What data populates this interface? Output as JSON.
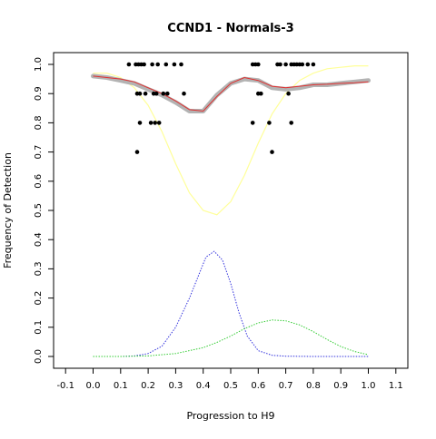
{
  "chart_data": {
    "type": "scatter",
    "title": "CCND1 - Normals-3",
    "xlabel": "Progression to H9",
    "ylabel": "Frequency of Detection",
    "xlim": [
      -0.1,
      1.1
    ],
    "ylim": [
      0.0,
      1.0
    ],
    "xticks": [
      "-0.1",
      "0.0",
      "0.1",
      "0.2",
      "0.3",
      "0.4",
      "0.5",
      "0.6",
      "0.7",
      "0.8",
      "0.9",
      "1.0",
      "1.1"
    ],
    "yticks": [
      "0.0",
      "0.1",
      "0.2",
      "0.3",
      "0.4",
      "0.5",
      "0.6",
      "0.7",
      "0.8",
      "0.9",
      "1.0"
    ],
    "grid": false,
    "colors": {
      "points": "#000000",
      "gray_band": "#b3b3b3",
      "smooth_line": "#e03030",
      "yellow_curve": "#ffff99",
      "blue_curve": "#3333dd",
      "green_curve": "#33cc33"
    },
    "series": [
      {
        "type": "scatter",
        "x": [
          0.13,
          0.155,
          0.165,
          0.175,
          0.185,
          0.215,
          0.235,
          0.265,
          0.295,
          0.32,
          0.58,
          0.59,
          0.6,
          0.67,
          0.68,
          0.7,
          0.72,
          0.73,
          0.74,
          0.75,
          0.76,
          0.78,
          0.8,
          0.16,
          0.17,
          0.19,
          0.22,
          0.23,
          0.255,
          0.27,
          0.33,
          0.6,
          0.61,
          0.71,
          0.17,
          0.21,
          0.225,
          0.24,
          0.58,
          0.64,
          0.72,
          0.65,
          0.16
        ],
        "y": [
          1.0,
          1.0,
          1.0,
          1.0,
          1.0,
          1.0,
          1.0,
          1.0,
          1.0,
          1.0,
          1.0,
          1.0,
          1.0,
          1.0,
          1.0,
          1.0,
          1.0,
          1.0,
          1.0,
          1.0,
          1.0,
          1.0,
          1.0,
          0.9,
          0.9,
          0.9,
          0.9,
          0.9,
          0.9,
          0.9,
          0.9,
          0.9,
          0.9,
          0.9,
          0.8,
          0.8,
          0.8,
          0.8,
          0.8,
          0.8,
          0.8,
          0.7,
          0.7
        ]
      },
      {
        "type": "band",
        "x": [
          0.0,
          0.05,
          0.1,
          0.15,
          0.2,
          0.25,
          0.3,
          0.35,
          0.4,
          0.45,
          0.5,
          0.55,
          0.6,
          0.65,
          0.7,
          0.75,
          0.8,
          0.85,
          0.9,
          0.95,
          1.0
        ],
        "y": [
          0.96,
          0.955,
          0.945,
          0.935,
          0.915,
          0.895,
          0.87,
          0.84,
          0.84,
          0.895,
          0.935,
          0.95,
          0.945,
          0.92,
          0.915,
          0.92,
          0.93,
          0.93,
          0.935,
          0.94,
          0.945
        ]
      },
      {
        "type": "line",
        "x": [
          0.0,
          0.05,
          0.1,
          0.15,
          0.2,
          0.25,
          0.3,
          0.35,
          0.4,
          0.45,
          0.5,
          0.55,
          0.6,
          0.65,
          0.7,
          0.75,
          0.8,
          0.85,
          0.9,
          0.95,
          1.0
        ],
        "y": [
          0.96,
          0.955,
          0.95,
          0.94,
          0.92,
          0.9,
          0.875,
          0.845,
          0.84,
          0.89,
          0.935,
          0.955,
          0.945,
          0.925,
          0.92,
          0.925,
          0.93,
          0.932,
          0.935,
          0.937,
          0.94
        ]
      },
      {
        "type": "line",
        "x": [
          0.0,
          0.05,
          0.1,
          0.15,
          0.2,
          0.25,
          0.3,
          0.35,
          0.4,
          0.45,
          0.5,
          0.55,
          0.6,
          0.65,
          0.7,
          0.75,
          0.8,
          0.85,
          0.9,
          0.95,
          1.0
        ],
        "y": [
          0.97,
          0.97,
          0.955,
          0.92,
          0.86,
          0.77,
          0.66,
          0.56,
          0.5,
          0.485,
          0.53,
          0.62,
          0.73,
          0.83,
          0.9,
          0.945,
          0.97,
          0.985,
          0.99,
          0.995,
          0.995
        ]
      },
      {
        "type": "line",
        "x": [
          0.0,
          0.1,
          0.15,
          0.2,
          0.25,
          0.3,
          0.35,
          0.38,
          0.41,
          0.44,
          0.47,
          0.5,
          0.53,
          0.56,
          0.6,
          0.65,
          0.7,
          0.8,
          1.0
        ],
        "y": [
          0.0,
          0.0,
          0.002,
          0.01,
          0.035,
          0.1,
          0.2,
          0.27,
          0.34,
          0.36,
          0.33,
          0.25,
          0.15,
          0.07,
          0.02,
          0.004,
          0.001,
          0.0,
          0.0
        ]
      },
      {
        "type": "line",
        "x": [
          0.0,
          0.1,
          0.2,
          0.3,
          0.4,
          0.45,
          0.5,
          0.55,
          0.6,
          0.65,
          0.7,
          0.75,
          0.8,
          0.85,
          0.9,
          0.95,
          1.0
        ],
        "y": [
          0.0,
          0.0,
          0.002,
          0.01,
          0.03,
          0.048,
          0.07,
          0.095,
          0.115,
          0.125,
          0.122,
          0.108,
          0.085,
          0.058,
          0.034,
          0.017,
          0.006
        ]
      }
    ]
  }
}
